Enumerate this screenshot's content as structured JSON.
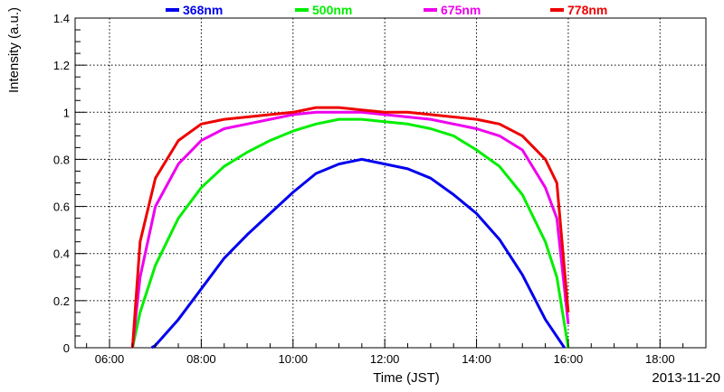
{
  "chart_data": {
    "type": "line",
    "title": "",
    "xlabel": "Time (JST)",
    "ylabel": "Intensity (a.u.)",
    "date_label": "2013-11-20",
    "xlim": [
      "05:15",
      "19:00"
    ],
    "ylim": [
      0,
      1.4
    ],
    "grid": true,
    "legend": "top",
    "x_ticks": [
      "06:00",
      "08:00",
      "10:00",
      "12:00",
      "14:00",
      "16:00",
      "18:00"
    ],
    "y_ticks": [
      "0",
      "0.2",
      "0.4",
      "0.6",
      "0.8",
      "1",
      "1.2",
      "1.4"
    ],
    "series": [
      {
        "name": "368nm",
        "color": "#0000ee",
        "x": [
          "06:55",
          "07:00",
          "07:30",
          "08:00",
          "08:30",
          "09:00",
          "09:30",
          "10:00",
          "10:30",
          "11:00",
          "11:30",
          "12:00",
          "12:30",
          "13:00",
          "13:30",
          "14:00",
          "14:30",
          "15:00",
          "15:30",
          "15:55"
        ],
        "y": [
          0.0,
          0.01,
          0.12,
          0.25,
          0.38,
          0.48,
          0.57,
          0.66,
          0.74,
          0.78,
          0.8,
          0.78,
          0.76,
          0.72,
          0.65,
          0.57,
          0.46,
          0.31,
          0.12,
          0.0
        ]
      },
      {
        "name": "500nm",
        "color": "#00ee00",
        "x": [
          "06:30",
          "06:40",
          "07:00",
          "07:30",
          "08:00",
          "08:30",
          "09:00",
          "09:30",
          "10:00",
          "10:30",
          "11:00",
          "11:30",
          "12:00",
          "12:30",
          "13:00",
          "13:30",
          "14:00",
          "14:30",
          "15:00",
          "15:30",
          "15:45",
          "16:00"
        ],
        "y": [
          0.0,
          0.15,
          0.35,
          0.55,
          0.68,
          0.77,
          0.83,
          0.88,
          0.92,
          0.95,
          0.97,
          0.97,
          0.96,
          0.95,
          0.93,
          0.9,
          0.84,
          0.77,
          0.65,
          0.45,
          0.3,
          0.0
        ]
      },
      {
        "name": "675nm",
        "color": "#ee00ee",
        "x": [
          "06:30",
          "06:40",
          "07:00",
          "07:30",
          "08:00",
          "08:30",
          "09:00",
          "09:30",
          "10:00",
          "10:30",
          "11:00",
          "11:30",
          "12:00",
          "12:30",
          "13:00",
          "13:30",
          "14:00",
          "14:30",
          "15:00",
          "15:30",
          "15:45",
          "16:00"
        ],
        "y": [
          0.0,
          0.3,
          0.6,
          0.78,
          0.88,
          0.93,
          0.95,
          0.97,
          0.99,
          1.0,
          1.0,
          1.0,
          0.99,
          0.98,
          0.97,
          0.95,
          0.93,
          0.9,
          0.84,
          0.68,
          0.55,
          0.1
        ]
      },
      {
        "name": "778nm",
        "color": "#ee0000",
        "x": [
          "06:30",
          "06:40",
          "07:00",
          "07:30",
          "08:00",
          "08:30",
          "09:00",
          "09:30",
          "10:00",
          "10:30",
          "11:00",
          "11:30",
          "12:00",
          "12:30",
          "13:00",
          "13:30",
          "14:00",
          "14:30",
          "15:00",
          "15:30",
          "15:45",
          "16:00"
        ],
        "y": [
          0.0,
          0.45,
          0.72,
          0.88,
          0.95,
          0.97,
          0.98,
          0.99,
          1.0,
          1.02,
          1.02,
          1.01,
          1.0,
          1.0,
          0.99,
          0.98,
          0.97,
          0.95,
          0.9,
          0.8,
          0.7,
          0.15
        ]
      }
    ]
  }
}
